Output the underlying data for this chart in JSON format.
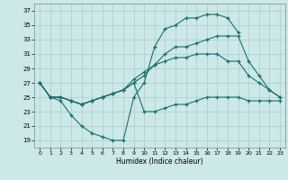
{
  "xlabel": "Humidex (Indice chaleur)",
  "background_color": "#cce8e8",
  "grid_color": "#aacccc",
  "line_color": "#1a6e6e",
  "xlim": [
    -0.5,
    23.5
  ],
  "ylim": [
    18,
    38
  ],
  "yticks": [
    19,
    21,
    23,
    25,
    27,
    29,
    31,
    33,
    35,
    37
  ],
  "xticks": [
    0,
    1,
    2,
    3,
    4,
    5,
    6,
    7,
    8,
    9,
    10,
    11,
    12,
    13,
    14,
    15,
    16,
    17,
    18,
    19,
    20,
    21,
    22,
    23
  ],
  "series": [
    [
      27,
      25,
      24.5,
      22.5,
      21,
      20,
      19.5,
      19,
      19,
      25,
      27,
      32,
      34.5,
      35,
      36,
      36,
      36.5,
      36.5,
      36,
      34,
      null,
      null,
      null,
      null
    ],
    [
      27,
      25,
      25,
      24.5,
      24,
      24.5,
      25,
      25.5,
      26,
      27,
      28,
      29.5,
      31,
      32,
      32,
      32.5,
      33,
      33.5,
      33.5,
      33.5,
      30,
      28,
      26,
      25
    ],
    [
      27,
      25,
      25,
      24.5,
      24,
      24.5,
      25,
      25.5,
      26,
      27.5,
      28.5,
      29.5,
      30,
      30.5,
      30.5,
      31,
      31,
      31,
      30,
      30,
      28,
      27,
      26,
      25
    ],
    [
      27,
      25,
      25,
      24.5,
      24,
      24.5,
      25,
      25.5,
      26,
      27,
      23,
      23,
      23.5,
      24,
      24,
      24.5,
      25,
      25,
      25,
      25,
      24.5,
      24.5,
      24.5,
      24.5
    ]
  ]
}
